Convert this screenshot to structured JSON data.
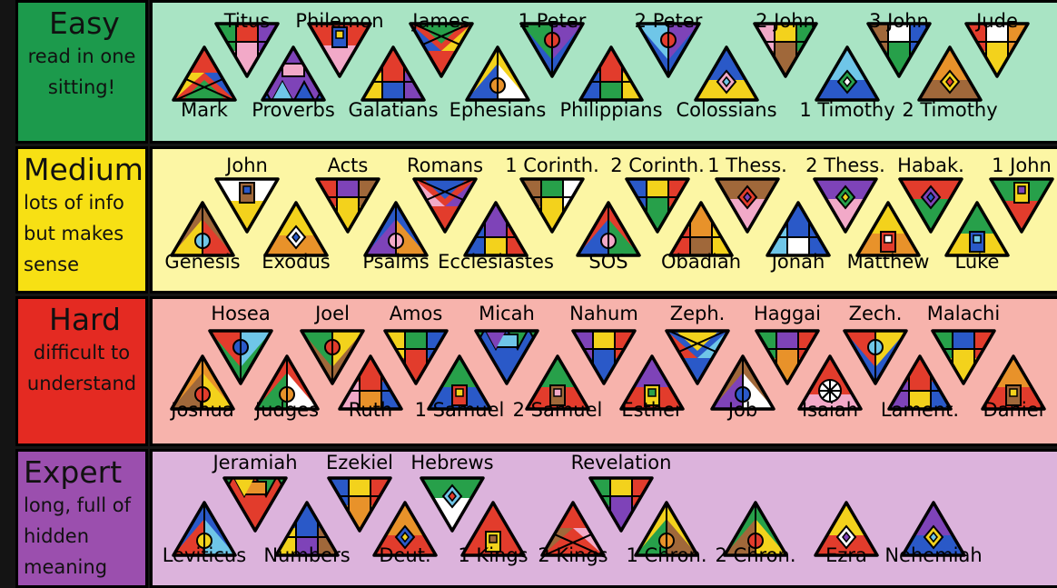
{
  "tiers": [
    {
      "id": "easy",
      "label": "Easy",
      "description": "read in one sitting!",
      "label_color": "#1c9a4c",
      "panel_color": "#a9e4c4",
      "books": [
        {
          "name": "Mark",
          "dir": "up",
          "colors": [
            "#e23c2c",
            "#f3d21c",
            "#2a59c8",
            "#27a04a"
          ],
          "icon": "cross"
        },
        {
          "name": "Titus",
          "dir": "down",
          "colors": [
            "#f2a9c8",
            "#27a04a",
            "#7e43b8",
            "#e23c2c"
          ],
          "icon": "stripes"
        },
        {
          "name": "Proverbs",
          "dir": "up",
          "colors": [
            "#7e43b8",
            "#2a59c8",
            "#f2a9c8",
            "#6fc6e8"
          ],
          "icon": "zigzag"
        },
        {
          "name": "Philemon",
          "dir": "down",
          "colors": [
            "#f2a9c8",
            "#e23c2c",
            "#2a59c8",
            "#f3d21c"
          ],
          "icon": "house"
        },
        {
          "name": "Galatians",
          "dir": "up",
          "colors": [
            "#e23c2c",
            "#f3d21c",
            "#7e43b8",
            "#2a59c8"
          ],
          "icon": "stripes"
        },
        {
          "name": "James",
          "dir": "down",
          "colors": [
            "#e23c2c",
            "#2a59c8",
            "#f3d21c",
            "#27a04a"
          ],
          "icon": "cross"
        },
        {
          "name": "Ephesians",
          "dir": "up",
          "colors": [
            "#f3d21c",
            "#2a59c8",
            "#e8922a",
            "#ffffff"
          ],
          "icon": "circle"
        },
        {
          "name": "1 Peter",
          "dir": "down",
          "colors": [
            "#2a59c8",
            "#27a04a",
            "#e23c2c",
            "#7e43b8"
          ],
          "icon": "circle"
        },
        {
          "name": "Philippians",
          "dir": "up",
          "colors": [
            "#e23c2c",
            "#2a59c8",
            "#f3d21c",
            "#27a04a"
          ],
          "icon": "stripes"
        },
        {
          "name": "2 Peter",
          "dir": "down",
          "colors": [
            "#2a59c8",
            "#6fc6e8",
            "#e23c2c",
            "#7e43b8"
          ],
          "icon": "circle"
        },
        {
          "name": "Colossians",
          "dir": "up",
          "colors": [
            "#2a59c8",
            "#f3d21c",
            "#f2a9c8",
            "#6fc6e8"
          ],
          "icon": "diamond"
        },
        {
          "name": "2 John",
          "dir": "down",
          "colors": [
            "#a0683a",
            "#f2a9c8",
            "#27a04a",
            "#f3d21c"
          ],
          "icon": "stripes"
        },
        {
          "name": "1 Timothy",
          "dir": "up",
          "colors": [
            "#6fc6e8",
            "#2a59c8",
            "#27a04a",
            "#ffffff"
          ],
          "icon": "diamond"
        },
        {
          "name": "3 John",
          "dir": "down",
          "colors": [
            "#27a04a",
            "#a0683a",
            "#2a59c8",
            "#ffffff"
          ],
          "icon": "stripes"
        },
        {
          "name": "2 Timothy",
          "dir": "up",
          "colors": [
            "#e8922a",
            "#a0683a",
            "#f3d21c",
            "#e23c2c"
          ],
          "icon": "diamond"
        },
        {
          "name": "Jude",
          "dir": "down",
          "colors": [
            "#f3d21c",
            "#e23c2c",
            "#e8922a",
            "#ffffff"
          ],
          "icon": "stripes"
        }
      ]
    },
    {
      "id": "medium",
      "label": "Medium",
      "description": "lots of info but makes sense",
      "label_color": "#f7e014",
      "panel_color": "#fcf6a4",
      "books": [
        {
          "name": "Genesis",
          "dir": "up",
          "colors": [
            "#a0683a",
            "#f3d21c",
            "#6fc6e8",
            "#e23c2c"
          ],
          "icon": "circle"
        },
        {
          "name": "John",
          "dir": "down",
          "colors": [
            "#f3d21c",
            "#ffffff",
            "#a0683a",
            "#2a59c8"
          ],
          "icon": "house"
        },
        {
          "name": "Exodus",
          "dir": "up",
          "colors": [
            "#f3d21c",
            "#e8922a",
            "#ffffff",
            "#2a59c8"
          ],
          "icon": "diamond"
        },
        {
          "name": "Acts",
          "dir": "down",
          "colors": [
            "#f3d21c",
            "#e23c2c",
            "#a0683a",
            "#7e43b8"
          ],
          "icon": "stripes"
        },
        {
          "name": "Psalms",
          "dir": "up",
          "colors": [
            "#2a59c8",
            "#7e43b8",
            "#f2a9c8",
            "#e8922a"
          ],
          "icon": "circle"
        },
        {
          "name": "Romans",
          "dir": "down",
          "colors": [
            "#e23c2c",
            "#f2a9c8",
            "#7e43b8",
            "#2a59c8"
          ],
          "icon": "cross"
        },
        {
          "name": "Ecclesiastes",
          "dir": "up",
          "colors": [
            "#7e43b8",
            "#2a59c8",
            "#e23c2c",
            "#f3d21c"
          ],
          "icon": "stripes"
        },
        {
          "name": "1 Corinth.",
          "dir": "down",
          "colors": [
            "#f3d21c",
            "#a0683a",
            "#ffffff",
            "#27a04a"
          ],
          "icon": "stripes"
        },
        {
          "name": "SOS",
          "dir": "up",
          "colors": [
            "#e23c2c",
            "#2a59c8",
            "#f2a9c8",
            "#27a04a"
          ],
          "icon": "circle"
        },
        {
          "name": "2 Corinth.",
          "dir": "down",
          "colors": [
            "#27a04a",
            "#2a59c8",
            "#e23c2c",
            "#f3d21c"
          ],
          "icon": "stripes"
        },
        {
          "name": "Obadiah",
          "dir": "up",
          "colors": [
            "#e8922a",
            "#e23c2c",
            "#f3d21c",
            "#a0683a"
          ],
          "icon": "stripes"
        },
        {
          "name": "1 Thess.",
          "dir": "down",
          "colors": [
            "#f2a9c8",
            "#a0683a",
            "#e23c2c",
            "#7e43b8"
          ],
          "icon": "diamond"
        },
        {
          "name": "Jonah",
          "dir": "up",
          "colors": [
            "#2a59c8",
            "#6fc6e8",
            "#2a59c8",
            "#ffffff"
          ],
          "icon": "stripes"
        },
        {
          "name": "2 Thess.",
          "dir": "down",
          "colors": [
            "#f2a9c8",
            "#7e43b8",
            "#27a04a",
            "#f3d21c"
          ],
          "icon": "diamond"
        },
        {
          "name": "Matthew",
          "dir": "up",
          "colors": [
            "#f3d21c",
            "#e8922a",
            "#e23c2c",
            "#ffffff"
          ],
          "icon": "house"
        },
        {
          "name": "Habak.",
          "dir": "down",
          "colors": [
            "#27a04a",
            "#e23c2c",
            "#7e43b8",
            "#2a59c8"
          ],
          "icon": "diamond"
        },
        {
          "name": "Luke",
          "dir": "up",
          "colors": [
            "#27a04a",
            "#f3d21c",
            "#2a59c8",
            "#6fc6e8"
          ],
          "icon": "house"
        },
        {
          "name": "1 John",
          "dir": "down",
          "colors": [
            "#e23c2c",
            "#27a04a",
            "#f3d21c",
            "#7e43b8"
          ],
          "icon": "house"
        }
      ]
    },
    {
      "id": "hard",
      "label": "Hard",
      "description": "difficult to understand",
      "label_color": "#e42a22",
      "panel_color": "#f7b3ac",
      "books": [
        {
          "name": "Joshua",
          "dir": "up",
          "colors": [
            "#e8922a",
            "#a0683a",
            "#e23c2c",
            "#f3d21c"
          ],
          "icon": "circle"
        },
        {
          "name": "Hosea",
          "dir": "down",
          "colors": [
            "#27a04a",
            "#e23c2c",
            "#2a59c8",
            "#6fc6e8"
          ],
          "icon": "circle"
        },
        {
          "name": "Judges",
          "dir": "up",
          "colors": [
            "#e23c2c",
            "#27a04a",
            "#e8922a",
            "#ffffff"
          ],
          "icon": "circle"
        },
        {
          "name": "Joel",
          "dir": "down",
          "colors": [
            "#a0683a",
            "#27a04a",
            "#e23c2c",
            "#f3d21c"
          ],
          "icon": "circle"
        },
        {
          "name": "Ruth",
          "dir": "up",
          "colors": [
            "#e23c2c",
            "#f2a9c8",
            "#2a59c8",
            "#e8922a"
          ],
          "icon": "stripes"
        },
        {
          "name": "Amos",
          "dir": "down",
          "colors": [
            "#e23c2c",
            "#f3d21c",
            "#2a59c8",
            "#27a04a"
          ],
          "icon": "stripes"
        },
        {
          "name": "1 Samuel",
          "dir": "up",
          "colors": [
            "#27a04a",
            "#2a59c8",
            "#e23c2c",
            "#f3d21c"
          ],
          "icon": "house"
        },
        {
          "name": "Micah",
          "dir": "down",
          "colors": [
            "#2a59c8",
            "#27a04a",
            "#6fc6e8",
            "#7e43b8"
          ],
          "icon": "zigzag"
        },
        {
          "name": "2 Samuel",
          "dir": "up",
          "colors": [
            "#27a04a",
            "#e23c2c",
            "#a0683a",
            "#f2a9c8"
          ],
          "icon": "house"
        },
        {
          "name": "Nahum",
          "dir": "down",
          "colors": [
            "#2a59c8",
            "#7e43b8",
            "#e23c2c",
            "#f3d21c"
          ],
          "icon": "stripes"
        },
        {
          "name": "Esther",
          "dir": "up",
          "colors": [
            "#7e43b8",
            "#e23c2c",
            "#f3d21c",
            "#27a04a"
          ],
          "icon": "house"
        },
        {
          "name": "Zeph.",
          "dir": "down",
          "colors": [
            "#2a59c8",
            "#e23c2c",
            "#6fc6e8",
            "#f3d21c"
          ],
          "icon": "cross"
        },
        {
          "name": "Job",
          "dir": "up",
          "colors": [
            "#a0683a",
            "#7e43b8",
            "#2a59c8",
            "#ffffff"
          ],
          "icon": "circle"
        },
        {
          "name": "Haggai",
          "dir": "down",
          "colors": [
            "#e8922a",
            "#27a04a",
            "#e23c2c",
            "#7e43b8"
          ],
          "icon": "stripes"
        },
        {
          "name": "Isaiah",
          "dir": "up",
          "colors": [
            "#e23c2c",
            "#f2a9c8",
            "#7e43b8",
            "#ffffff"
          ],
          "icon": "star"
        },
        {
          "name": "Zech.",
          "dir": "down",
          "colors": [
            "#2a59c8",
            "#e23c2c",
            "#6fc6e8",
            "#f3d21c"
          ],
          "icon": "circle"
        },
        {
          "name": "Lament.",
          "dir": "up",
          "colors": [
            "#e23c2c",
            "#7e43b8",
            "#2a59c8",
            "#f3d21c"
          ],
          "icon": "stripes"
        },
        {
          "name": "Malachi",
          "dir": "down",
          "colors": [
            "#f3d21c",
            "#27a04a",
            "#e23c2c",
            "#2a59c8"
          ],
          "icon": "stripes"
        },
        {
          "name": "Daniel",
          "dir": "up",
          "colors": [
            "#e8922a",
            "#e23c2c",
            "#a0683a",
            "#f3d21c"
          ],
          "icon": "house"
        }
      ]
    },
    {
      "id": "expert",
      "label": "Expert",
      "description": "long, full of hidden meaning",
      "label_color": "#9b4fae",
      "panel_color": "#dcb3dc",
      "books": [
        {
          "name": "Leviticus",
          "dir": "up",
          "colors": [
            "#2a59c8",
            "#e23c2c",
            "#f3d21c",
            "#6fc6e8"
          ],
          "icon": "circle"
        },
        {
          "name": "Jeramiah",
          "dir": "down",
          "colors": [
            "#e23c2c",
            "#27a04a",
            "#e8922a",
            "#f3d21c"
          ],
          "icon": "zigzag"
        },
        {
          "name": "Numbers",
          "dir": "up",
          "colors": [
            "#2a59c8",
            "#f3d21c",
            "#a0683a",
            "#7e43b8"
          ],
          "icon": "stripes"
        },
        {
          "name": "Ezekiel",
          "dir": "down",
          "colors": [
            "#e8922a",
            "#2a59c8",
            "#e23c2c",
            "#f3d21c"
          ],
          "icon": "stripes"
        },
        {
          "name": "Deut.",
          "dir": "up",
          "colors": [
            "#e8922a",
            "#e23c2c",
            "#2a59c8",
            "#f3d21c"
          ],
          "icon": "diamond"
        },
        {
          "name": "Hebrews",
          "dir": "down",
          "colors": [
            "#ffffff",
            "#27a04a",
            "#6fc6e8",
            "#e23c2c"
          ],
          "icon": "diamond"
        },
        {
          "name": "1 Kings",
          "dir": "up",
          "colors": [
            "#e23c2c",
            "#e23c2c",
            "#f3d21c",
            "#a0683a"
          ],
          "icon": "house"
        },
        {
          "name": "2 Kings",
          "dir": "up",
          "colors": [
            "#e23c2c",
            "#a0683a",
            "#f2a9c8",
            "#e23c2c"
          ],
          "icon": "cross"
        },
        {
          "name": "Revelation",
          "dir": "down",
          "colors": [
            "#7e43b8",
            "#27a04a",
            "#e23c2c",
            "#f3d21c"
          ],
          "icon": "stripes"
        },
        {
          "name": "1 Chron.",
          "dir": "up",
          "colors": [
            "#f3d21c",
            "#27a04a",
            "#e8922a",
            "#a0683a"
          ],
          "icon": "circle"
        },
        {
          "name": "2 Chron.",
          "dir": "up",
          "colors": [
            "#27a04a",
            "#a0683a",
            "#e23c2c",
            "#f3d21c"
          ],
          "icon": "circle"
        },
        {
          "name": "Ezra",
          "dir": "up",
          "colors": [
            "#f3d21c",
            "#e23c2c",
            "#ffffff",
            "#7e43b8"
          ],
          "icon": "diamond"
        },
        {
          "name": "Nehemiah",
          "dir": "up",
          "colors": [
            "#7e43b8",
            "#2a59c8",
            "#f3d21c",
            "#6fc6e8"
          ],
          "icon": "diamond"
        }
      ]
    }
  ]
}
